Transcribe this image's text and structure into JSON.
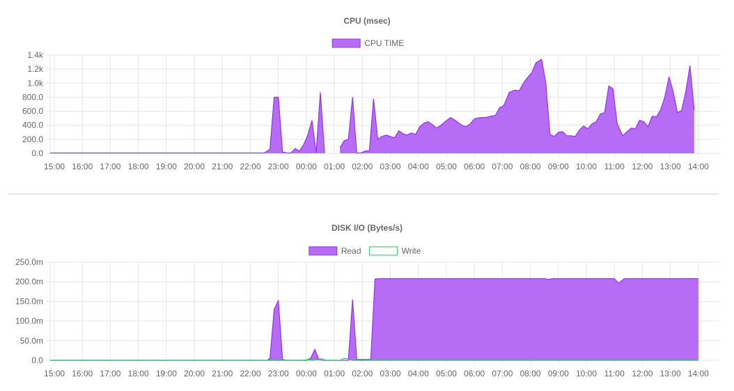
{
  "chart_data": [
    {
      "type": "area",
      "title": "CPU (msec)",
      "ylim": [
        0,
        1400
      ],
      "y_ticks": [
        "0.0",
        "200.0",
        "400.0",
        "600.0",
        "800.0",
        "1.0k",
        "1.2k",
        "1.4k"
      ],
      "y_tick_values": [
        0,
        200,
        400,
        600,
        800,
        1000,
        1200,
        1400
      ],
      "x_range_hours": [
        14.85,
        38.75
      ],
      "x_ticks": [
        "15:00",
        "16:00",
        "17:00",
        "18:00",
        "19:00",
        "20:00",
        "21:00",
        "22:00",
        "23:00",
        "00:00",
        "01:00",
        "02:00",
        "03:00",
        "04:00",
        "05:00",
        "06:00",
        "07:00",
        "08:00",
        "09:00",
        "10:00",
        "11:00",
        "12:00",
        "13:00",
        "14:00"
      ],
      "grid": true,
      "legend_position": "top",
      "series": [
        {
          "name": "CPU TIME",
          "color": "#9333ea",
          "fill": "#b66cf5",
          "segments": [
            [
              [
                14.85,
                5
              ],
              [
                15.5,
                5
              ],
              [
                16.5,
                5
              ],
              [
                17.5,
                5
              ],
              [
                18.5,
                5
              ],
              [
                19.5,
                5
              ],
              [
                20.5,
                5
              ],
              [
                21.5,
                5
              ],
              [
                22.5,
                5
              ],
              [
                22.7,
                60
              ],
              [
                22.85,
                800
              ],
              [
                23.0,
                800
              ],
              [
                23.15,
                20
              ],
              [
                23.3,
                5
              ],
              [
                23.45,
                5
              ],
              [
                23.6,
                70
              ],
              [
                23.75,
                30
              ],
              [
                23.9,
                120
              ],
              [
                24.05,
                260
              ],
              [
                24.2,
                470
              ],
              [
                24.35,
                10
              ],
              [
                24.5,
                870
              ],
              [
                24.65,
                5
              ]
            ],
            [
              [
                25.2,
                80
              ],
              [
                25.35,
                180
              ],
              [
                25.5,
                200
              ],
              [
                25.65,
                800
              ],
              [
                25.8,
                5
              ],
              [
                25.95,
                5
              ],
              [
                26.1,
                35
              ],
              [
                26.25,
                35
              ],
              [
                26.4,
                780
              ],
              [
                26.55,
                200
              ],
              [
                26.7,
                240
              ],
              [
                26.85,
                260
              ],
              [
                27.0,
                240
              ],
              [
                27.15,
                220
              ],
              [
                27.3,
                320
              ],
              [
                27.45,
                280
              ],
              [
                27.6,
                260
              ],
              [
                27.75,
                290
              ],
              [
                27.9,
                270
              ],
              [
                28.05,
                380
              ],
              [
                28.2,
                430
              ],
              [
                28.35,
                450
              ],
              [
                28.5,
                410
              ],
              [
                28.65,
                360
              ],
              [
                28.8,
                400
              ],
              [
                28.95,
                450
              ],
              [
                29.15,
                510
              ],
              [
                29.35,
                460
              ],
              [
                29.55,
                400
              ],
              [
                29.7,
                380
              ],
              [
                29.85,
                420
              ],
              [
                30.0,
                490
              ],
              [
                30.2,
                510
              ],
              [
                30.4,
                510
              ],
              [
                30.6,
                530
              ],
              [
                30.75,
                540
              ],
              [
                30.9,
                650
              ],
              [
                31.05,
                680
              ],
              [
                31.25,
                870
              ],
              [
                31.45,
                900
              ],
              [
                31.6,
                890
              ],
              [
                31.75,
                1000
              ],
              [
                31.9,
                1080
              ],
              [
                32.05,
                1150
              ],
              [
                32.2,
                1290
              ],
              [
                32.4,
                1340
              ],
              [
                32.55,
                1010
              ],
              [
                32.7,
                270
              ],
              [
                32.85,
                240
              ],
              [
                33.0,
                300
              ],
              [
                33.15,
                310
              ],
              [
                33.3,
                250
              ],
              [
                33.45,
                250
              ],
              [
                33.6,
                240
              ],
              [
                33.75,
                330
              ],
              [
                33.9,
                390
              ],
              [
                34.05,
                350
              ],
              [
                34.2,
                420
              ],
              [
                34.35,
                450
              ],
              [
                34.5,
                560
              ],
              [
                34.65,
                580
              ],
              [
                34.8,
                960
              ],
              [
                34.95,
                920
              ],
              [
                35.1,
                420
              ],
              [
                35.3,
                250
              ],
              [
                35.45,
                310
              ],
              [
                35.6,
                360
              ],
              [
                35.75,
                350
              ],
              [
                35.9,
                470
              ],
              [
                36.05,
                450
              ],
              [
                36.2,
                380
              ],
              [
                36.35,
                530
              ],
              [
                36.5,
                520
              ],
              [
                36.65,
                620
              ],
              [
                36.8,
                800
              ],
              [
                36.95,
                1090
              ],
              [
                37.1,
                880
              ],
              [
                37.25,
                580
              ],
              [
                37.4,
                610
              ],
              [
                37.55,
                880
              ],
              [
                37.7,
                1250
              ],
              [
                37.85,
                620
              ]
            ]
          ]
        }
      ]
    },
    {
      "type": "area",
      "title": "DISK I/O (Bytes/s)",
      "ylim": [
        0,
        250
      ],
      "y_unit": "m",
      "y_ticks": [
        "0.0",
        "50.0m",
        "100.0m",
        "150.0m",
        "200.0m",
        "250.0m"
      ],
      "y_tick_values": [
        0,
        50,
        100,
        150,
        200,
        250
      ],
      "x_range_hours": [
        14.85,
        38.75
      ],
      "x_ticks": [
        "15:00",
        "16:00",
        "17:00",
        "18:00",
        "19:00",
        "20:00",
        "21:00",
        "22:00",
        "23:00",
        "00:00",
        "01:00",
        "02:00",
        "03:00",
        "04:00",
        "05:00",
        "06:00",
        "07:00",
        "08:00",
        "09:00",
        "10:00",
        "11:00",
        "12:00",
        "13:00",
        "14:00"
      ],
      "grid": true,
      "legend_position": "top",
      "series": [
        {
          "name": "Read",
          "color": "#9333ea",
          "fill": "#b66cf5",
          "points": [
            [
              14.85,
              0
            ],
            [
              22.6,
              0
            ],
            [
              22.7,
              5
            ],
            [
              22.85,
              130
            ],
            [
              23.0,
              152
            ],
            [
              23.15,
              2
            ],
            [
              23.3,
              0
            ],
            [
              24.0,
              0
            ],
            [
              24.15,
              5
            ],
            [
              24.3,
              28
            ],
            [
              24.45,
              2
            ],
            [
              24.6,
              0
            ],
            [
              25.5,
              0
            ],
            [
              25.65,
              155
            ],
            [
              25.8,
              2
            ],
            [
              26.1,
              2
            ],
            [
              26.3,
              2
            ],
            [
              26.45,
              207
            ],
            [
              26.6,
              208
            ],
            [
              32.5,
              208
            ],
            [
              32.65,
              206
            ],
            [
              32.8,
              208
            ],
            [
              35.0,
              208
            ],
            [
              35.15,
              196
            ],
            [
              35.35,
              208
            ],
            [
              38.0,
              208
            ]
          ]
        },
        {
          "name": "Write",
          "color": "#22c55e",
          "fill": "#ffffff",
          "points": [
            [
              14.85,
              0
            ],
            [
              23.9,
              0
            ],
            [
              24.05,
              2
            ],
            [
              24.2,
              0
            ],
            [
              24.55,
              4
            ],
            [
              24.7,
              0
            ],
            [
              25.2,
              0
            ],
            [
              25.35,
              5
            ],
            [
              25.5,
              3
            ],
            [
              25.65,
              0
            ],
            [
              26.4,
              0
            ],
            [
              38.0,
              0
            ]
          ]
        }
      ]
    }
  ]
}
